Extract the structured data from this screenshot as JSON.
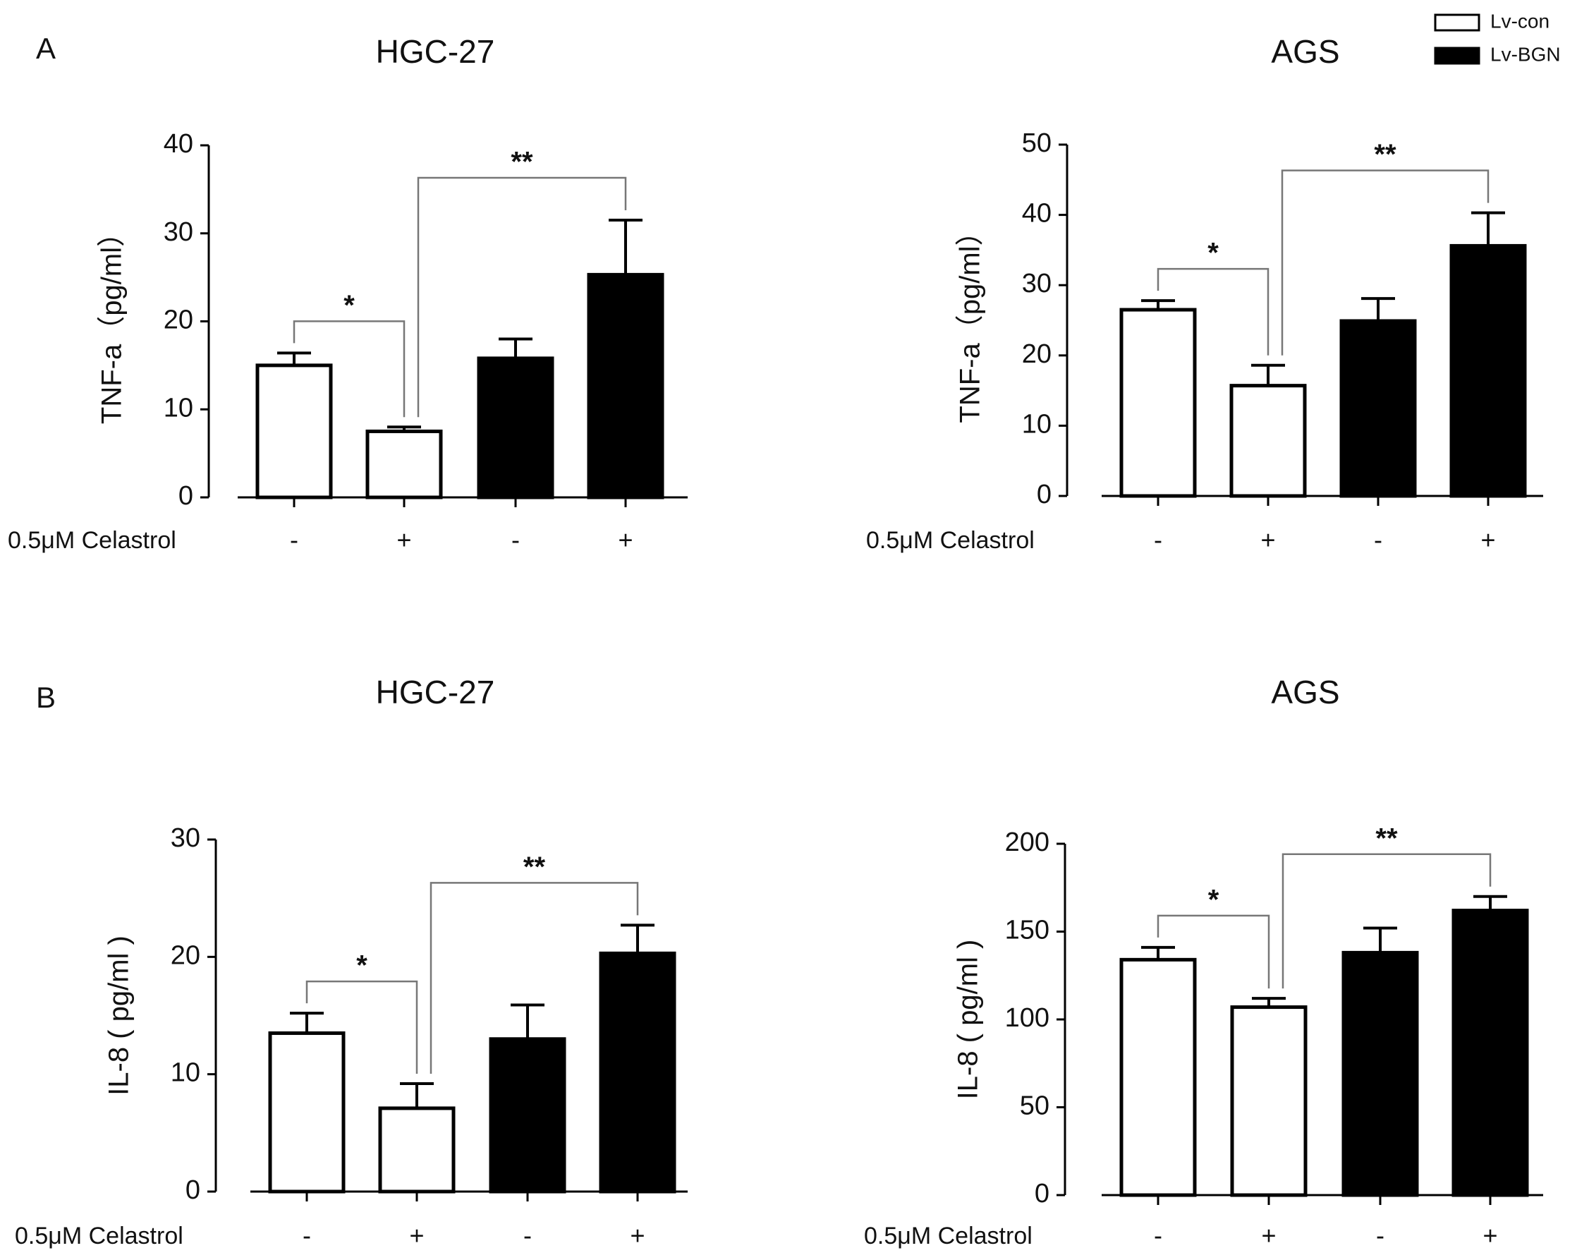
{
  "panels": [
    "A",
    "B"
  ],
  "legend": {
    "items": [
      {
        "name": "Lv-con",
        "color": "#ffffff"
      },
      {
        "name": "Lv-BGN",
        "color": "#000000"
      }
    ]
  },
  "chart_data": [
    {
      "type": "bar",
      "title": "HGC-27",
      "ylabel": "TNF-a（pg/ml）",
      "xlabel": "0.5μM Celastrol",
      "categories": [
        "-",
        "+",
        "-",
        "+"
      ],
      "values": [
        15,
        7.5,
        15.8,
        25.3
      ],
      "errors": [
        1.4,
        0.5,
        2.2,
        6.2
      ],
      "bar_colors": [
        "#ffffff",
        "#ffffff",
        "#000000",
        "#000000"
      ],
      "ylim": [
        0,
        40
      ],
      "yticks": [
        0,
        10,
        20,
        30,
        40
      ],
      "significance": [
        {
          "label": "*",
          "from": 0,
          "to": 1
        },
        {
          "label": "**",
          "from": 1,
          "to": 3
        }
      ]
    },
    {
      "type": "bar",
      "title": "AGS",
      "ylabel": "TNF-a（pg/ml）",
      "xlabel": "0.5μM Celastrol",
      "categories": [
        "-",
        "+",
        "-",
        "+"
      ],
      "values": [
        26.5,
        15.7,
        24.9,
        35.6
      ],
      "errors": [
        1.3,
        2.9,
        3.2,
        4.7
      ],
      "bar_colors": [
        "#ffffff",
        "#ffffff",
        "#000000",
        "#000000"
      ],
      "ylim": [
        0,
        50
      ],
      "yticks": [
        0,
        10,
        20,
        30,
        40,
        50
      ],
      "significance": [
        {
          "label": "*",
          "from": 0,
          "to": 1
        },
        {
          "label": "**",
          "from": 1,
          "to": 3
        }
      ]
    },
    {
      "type": "bar",
      "title": "HGC-27",
      "ylabel": "IL-8 ( pg/ml )",
      "xlabel": "0.5μM Celastrol",
      "categories": [
        "-",
        "+",
        "-",
        "+"
      ],
      "values": [
        13.5,
        7.1,
        13,
        20.3
      ],
      "errors": [
        1.7,
        2.1,
        2.9,
        2.4
      ],
      "bar_colors": [
        "#ffffff",
        "#ffffff",
        "#000000",
        "#000000"
      ],
      "ylim": [
        0,
        30
      ],
      "yticks": [
        0,
        10,
        20,
        30
      ],
      "significance": [
        {
          "label": "*",
          "from": 0,
          "to": 1
        },
        {
          "label": "**",
          "from": 1,
          "to": 3
        }
      ]
    },
    {
      "type": "bar",
      "title": "AGS",
      "ylabel": "IL-8 ( pg/ml )",
      "xlabel": "0.5μM Celastrol",
      "categories": [
        "-",
        "+",
        "-",
        "+"
      ],
      "values": [
        134,
        107,
        138,
        162
      ],
      "errors": [
        7,
        5,
        14,
        8
      ],
      "bar_colors": [
        "#ffffff",
        "#ffffff",
        "#000000",
        "#000000"
      ],
      "ylim": [
        0,
        200
      ],
      "yticks": [
        0,
        50,
        100,
        150,
        200
      ],
      "significance": [
        {
          "label": "*",
          "from": 0,
          "to": 1
        },
        {
          "label": "**",
          "from": 1,
          "to": 3
        }
      ]
    }
  ]
}
